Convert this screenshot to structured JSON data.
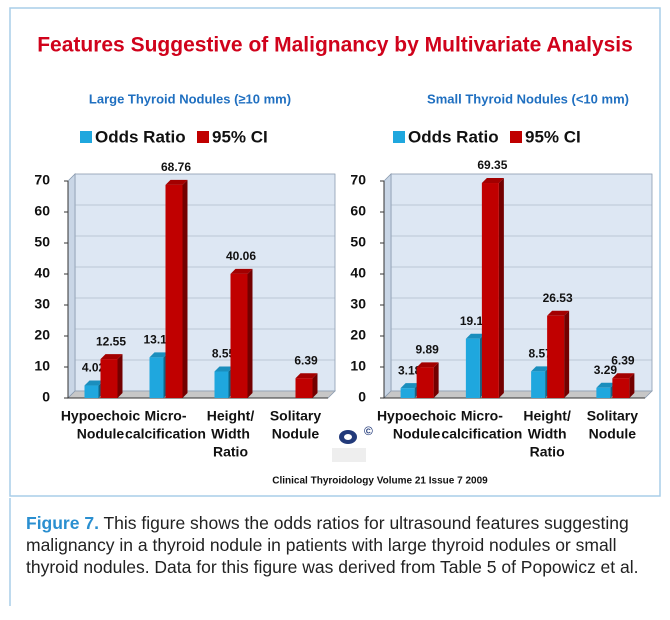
{
  "title": "Features Suggestive of Malignancy by  Multivariate Analysis",
  "source": "Clinical Thyroidology Volume 21 Issue 7 2009",
  "logo_symbol": "©",
  "caption": {
    "label": "Figure 7.",
    "text": " This figure shows the odds ratios for ultrasound features suggesting malignancy in a thyroid nodule in patients with large thyroid nodules or small thyroid nodules. Data for this figure was derived from Table 5 of Popowicz et al."
  },
  "chart_data": [
    {
      "type": "bar3d",
      "title": "Large Thyroid  Nodules (≥10 mm)",
      "categories": [
        [
          "Hypoechoic",
          "Nodule"
        ],
        [
          "Micro-",
          "calcification"
        ],
        [
          "Height/",
          "Width",
          "Ratio"
        ],
        [
          "Solitary",
          "Nodule"
        ]
      ],
      "series": [
        {
          "name": "Odds Ratio",
          "color": "#1fa7de",
          "values": [
            4.02,
            13.1,
            8.55,
            null
          ],
          "value_labels": [
            "4.02",
            "13.10",
            "8.55",
            null
          ]
        },
        {
          "name": "95% CI",
          "color": "#c00000",
          "values": [
            12.55,
            68.76,
            40.06,
            6.39
          ]
        }
      ],
      "ylim": [
        0,
        70
      ],
      "yticks": [
        0,
        10,
        20,
        30,
        40,
        50,
        60,
        70
      ],
      "legend": "top"
    },
    {
      "type": "bar3d",
      "title": "Small Thyroid  Nodules (<10 mm)",
      "categories": [
        [
          "Hypoechoic",
          "Nodule"
        ],
        [
          "Micro-",
          "calcification"
        ],
        [
          "Height/",
          "Width",
          "Ratio"
        ],
        [
          "Solitary",
          "Nodule"
        ]
      ],
      "series": [
        {
          "name": "Odds Ratio",
          "color": "#1fa7de",
          "values": [
            3.18,
            19.12,
            8.57,
            3.29
          ]
        },
        {
          "name": "95% CI",
          "color": "#c00000",
          "values": [
            9.89,
            69.35,
            26.53,
            6.39
          ]
        }
      ],
      "ylim": [
        0,
        70
      ],
      "yticks": [
        0,
        10,
        20,
        30,
        40,
        50,
        60,
        70
      ],
      "legend": "top"
    }
  ]
}
